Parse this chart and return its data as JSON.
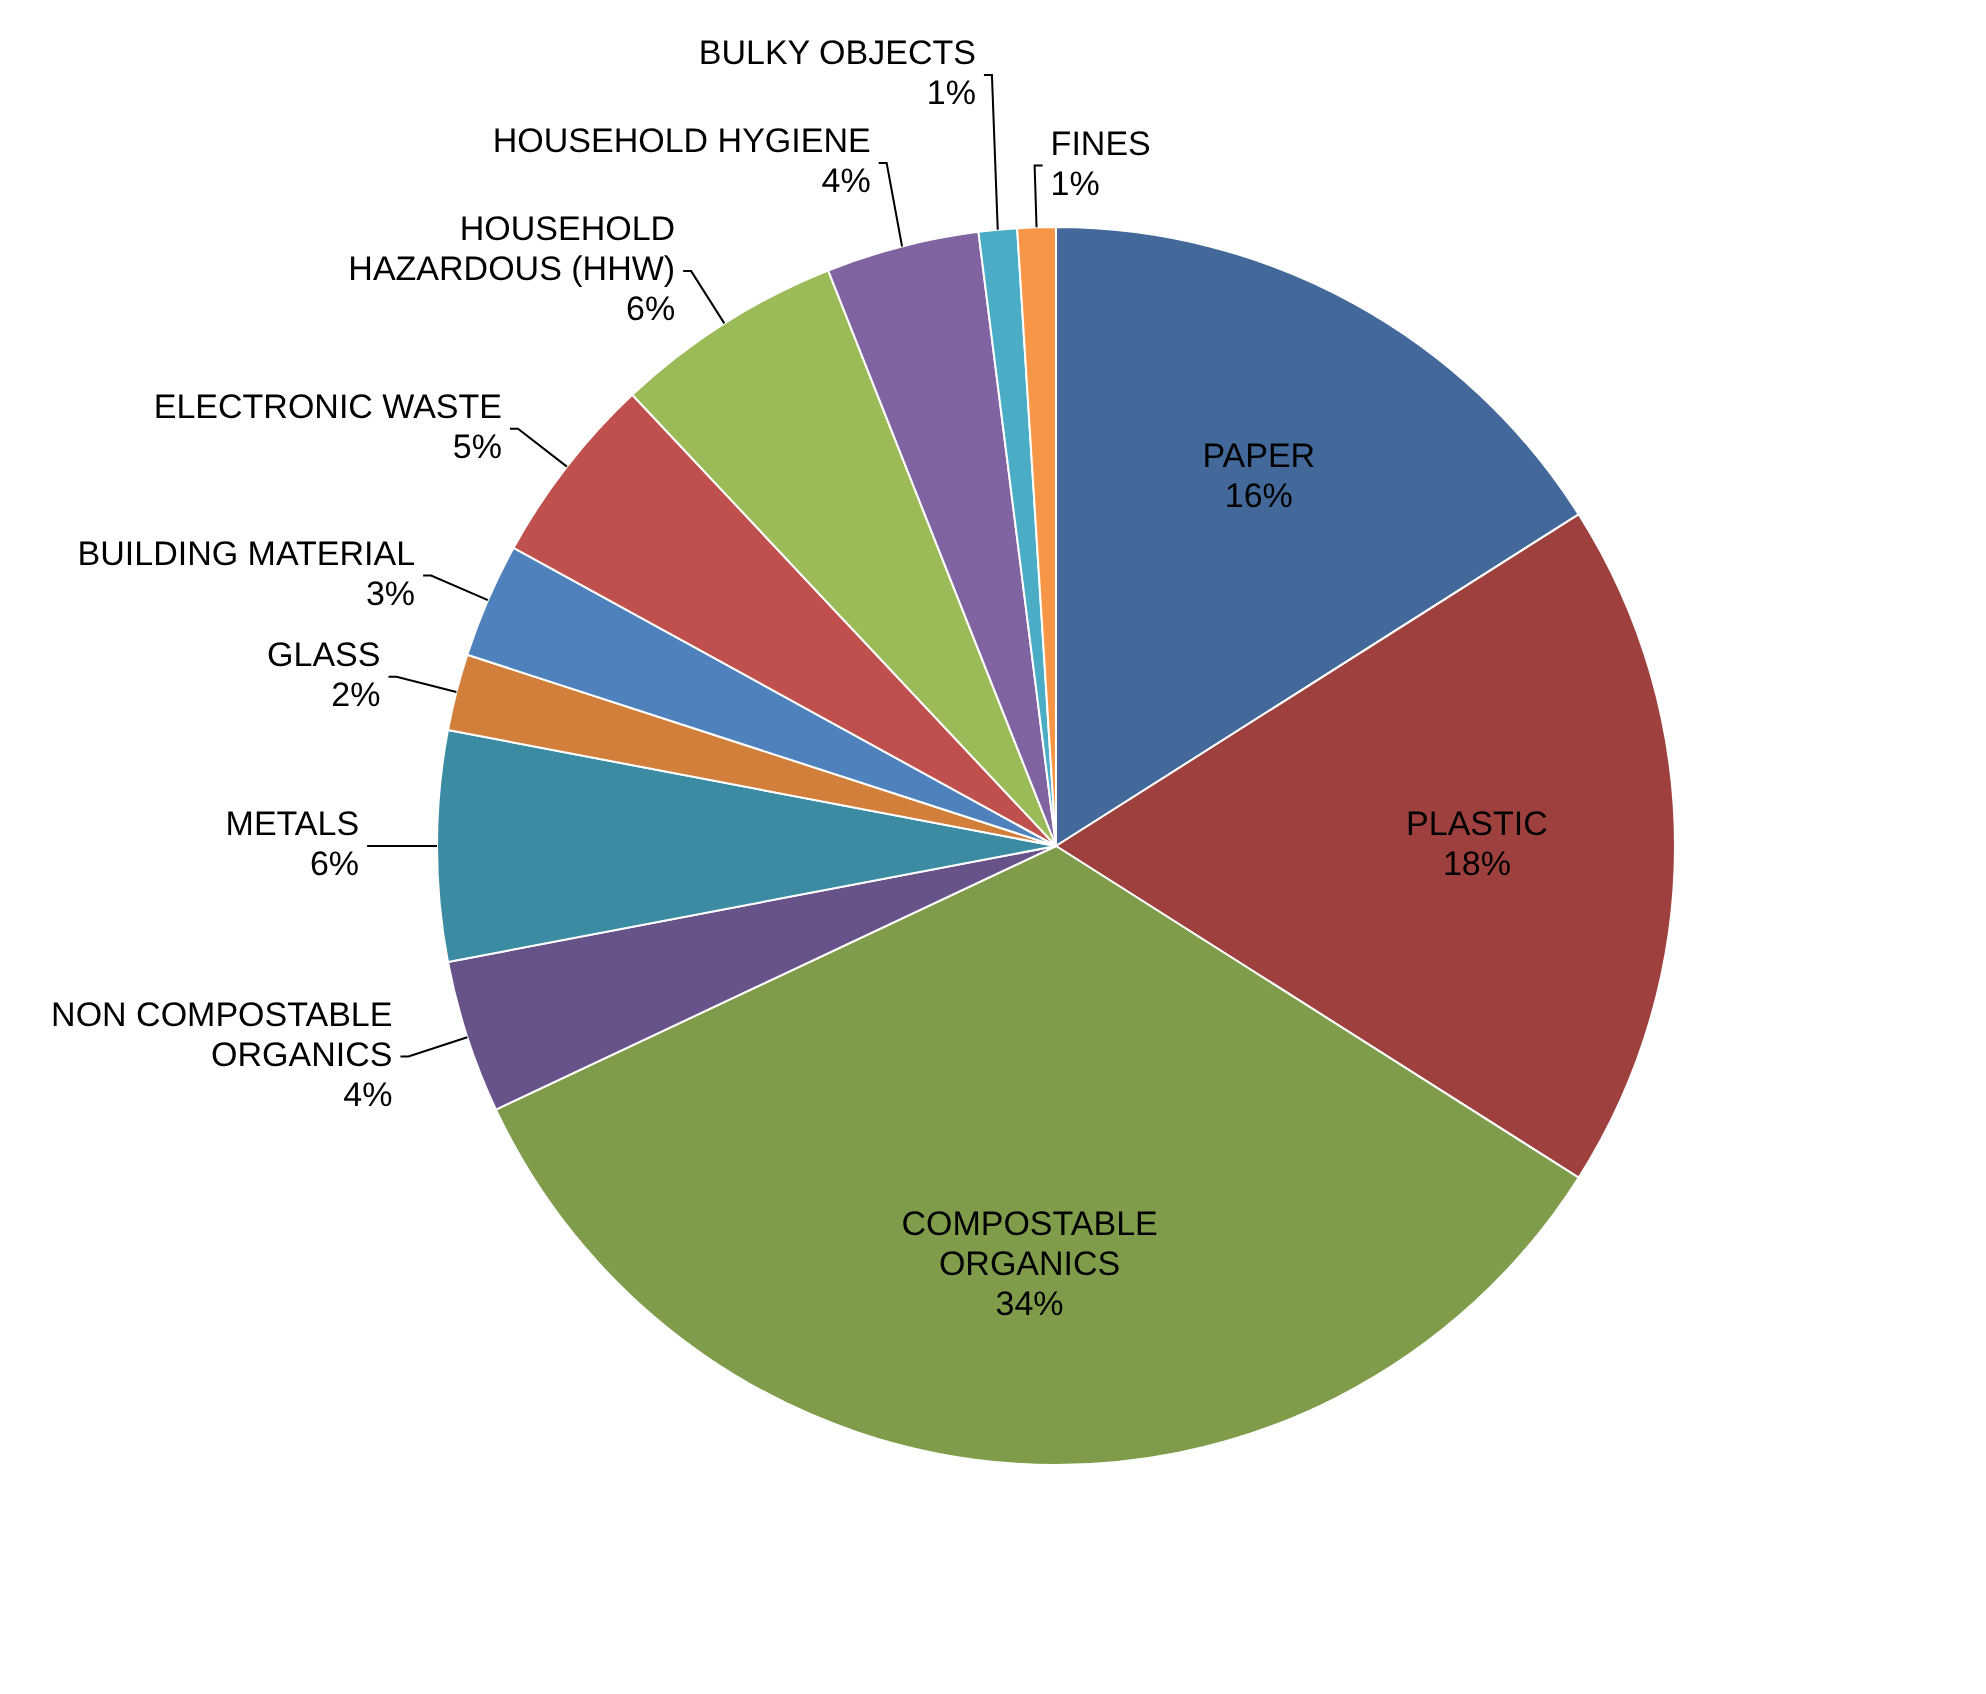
{
  "chart_data": {
    "type": "pie",
    "categories": [
      "PAPER",
      "PLASTIC",
      "COMPOSTABLE ORGANICS",
      "NON COMPOSTABLE ORGANICS",
      "METALS",
      "GLASS",
      "BUILDING MATERIAL",
      "ELECTRONIC WASTE",
      "HOUSEHOLD HAZARDOUS (HHW)",
      "HOUSEHOLD HYGIENE",
      "BULKY OBJECTS",
      "FINES"
    ],
    "values": [
      16,
      18,
      34,
      4,
      6,
      2,
      3,
      5,
      6,
      4,
      1,
      1
    ],
    "value_labels": [
      "16%",
      "18%",
      "34%",
      "4%",
      "6%",
      "2%",
      "3%",
      "5%",
      "6%",
      "4%",
      "1%",
      "1%"
    ],
    "colors": [
      "#43699b",
      "#9e413e",
      "#7f9c4a",
      "#67528a",
      "#3b8ba3",
      "#d27f3c",
      "#4f81bd",
      "#c0504d",
      "#9bbb59",
      "#8064a2",
      "#4bacc6",
      "#f79646"
    ],
    "legend": false
  }
}
